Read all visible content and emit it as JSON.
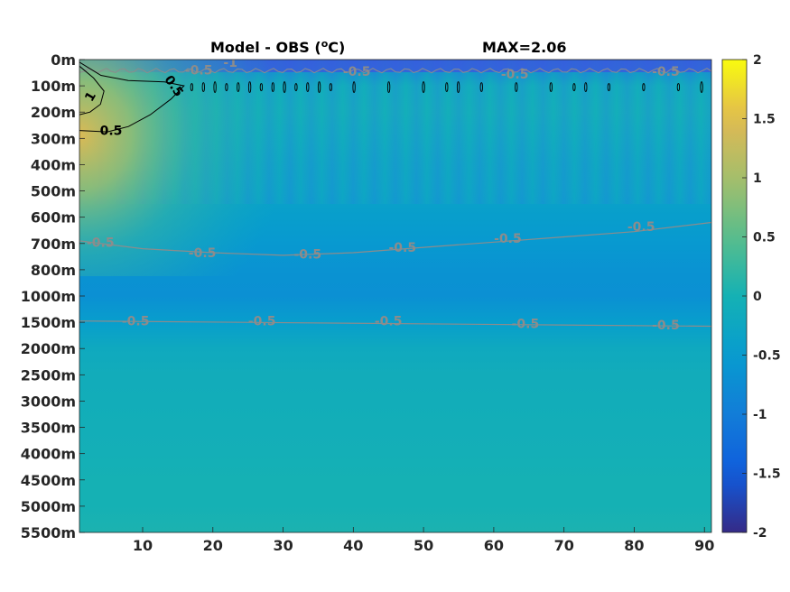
{
  "chart_data": {
    "type": "heatmap",
    "title": "Model - OBS (°C)",
    "title_main": "Model - OBS (",
    "title_sup": "o",
    "title_end": "C)",
    "annotation": "MAX=2.06",
    "xlabel": "",
    "ylabel": "",
    "xlim": [
      1,
      91
    ],
    "x_ticks": [
      10,
      20,
      30,
      40,
      50,
      60,
      70,
      80,
      90
    ],
    "y_categories": [
      "0m",
      "100m",
      "200m",
      "300m",
      "400m",
      "500m",
      "600m",
      "700m",
      "800m",
      "1000m",
      "1500m",
      "2000m",
      "2500m",
      "3000m",
      "3500m",
      "4000m",
      "4500m",
      "5000m",
      "5500m"
    ],
    "colorbar": {
      "range": [
        -2,
        2
      ],
      "ticks": [
        2,
        1.5,
        1,
        0.5,
        0,
        -0.5,
        -1,
        -1.5,
        -2
      ],
      "colormap": "parula"
    },
    "depth_profile": [
      -1.0,
      -0.15,
      -0.1,
      -0.2,
      -0.3,
      -0.35,
      -0.45,
      -0.55,
      -0.65,
      -0.7,
      -0.45,
      -0.2,
      -0.12,
      -0.1,
      -0.07,
      -0.05,
      0.0,
      0.0,
      0.05
    ],
    "warm_anomaly": {
      "x_extent": [
        1,
        20
      ],
      "depth_extent": [
        "0m",
        "300m"
      ],
      "max_value": 2.06
    },
    "contours": [
      {
        "level": "1",
        "color": "#000000",
        "depth_band": "100m-200m"
      },
      {
        "level": "0.5",
        "color": "#000000",
        "depth_band": "0m-300m"
      },
      {
        "level": "-0.5",
        "color": "#8c8c8c",
        "depth_band": "0m-100m"
      },
      {
        "level": "-0.5",
        "color": "#8c8c8c",
        "depth_band": "600m-700m"
      },
      {
        "level": "-0.5",
        "color": "#8c8c8c",
        "depth_band": "1500m"
      }
    ],
    "contour_labels": [
      {
        "text": "1",
        "x": 2.5,
        "depth": 1.4,
        "color": "#000000",
        "rotate": -60
      },
      {
        "text": "0.5",
        "x": 5.5,
        "depth": 2.7,
        "color": "#000000",
        "rotate": 0
      },
      {
        "text": "0.5",
        "x": 14.5,
        "depth": 1.0,
        "color": "#000000",
        "rotate": 55
      },
      {
        "text": "-0.5",
        "x": 18.0,
        "depth": 0.4,
        "color": "#8c8c8c",
        "rotate": 0
      },
      {
        "text": "-1",
        "x": 22.5,
        "depth": 0.1,
        "color": "#8c8c8c",
        "rotate": 0
      },
      {
        "text": "-0.5",
        "x": 40.5,
        "depth": 0.45,
        "color": "#8c8c8c",
        "rotate": 0
      },
      {
        "text": "-0.5",
        "x": 63.0,
        "depth": 0.55,
        "color": "#8c8c8c",
        "rotate": 0
      },
      {
        "text": "-0.5",
        "x": 84.5,
        "depth": 0.45,
        "color": "#8c8c8c",
        "rotate": 0
      },
      {
        "text": "-0.5",
        "x": 4.0,
        "depth": 6.95,
        "color": "#8c8c8c",
        "rotate": 0
      },
      {
        "text": "-0.5",
        "x": 18.5,
        "depth": 7.35,
        "color": "#8c8c8c",
        "rotate": 0
      },
      {
        "text": "-0.5",
        "x": 33.5,
        "depth": 7.4,
        "color": "#8c8c8c",
        "rotate": 0
      },
      {
        "text": "-0.5",
        "x": 47.0,
        "depth": 7.15,
        "color": "#8c8c8c",
        "rotate": 0
      },
      {
        "text": "-0.5",
        "x": 62.0,
        "depth": 6.8,
        "color": "#8c8c8c",
        "rotate": 0
      },
      {
        "text": "-0.5",
        "x": 81.0,
        "depth": 6.35,
        "color": "#8c8c8c",
        "rotate": 0
      },
      {
        "text": "-0.5",
        "x": 9.0,
        "depth": 9.95,
        "color": "#8c8c8c",
        "rotate": 0
      },
      {
        "text": "-0.5",
        "x": 27.0,
        "depth": 9.95,
        "color": "#8c8c8c",
        "rotate": 0
      },
      {
        "text": "-0.5",
        "x": 45.0,
        "depth": 9.95,
        "color": "#8c8c8c",
        "rotate": 0
      },
      {
        "text": "-0.5",
        "x": 64.5,
        "depth": 10.05,
        "color": "#8c8c8c",
        "rotate": 0
      },
      {
        "text": "-0.5",
        "x": 84.5,
        "depth": 10.1,
        "color": "#8c8c8c",
        "rotate": 0
      }
    ]
  }
}
